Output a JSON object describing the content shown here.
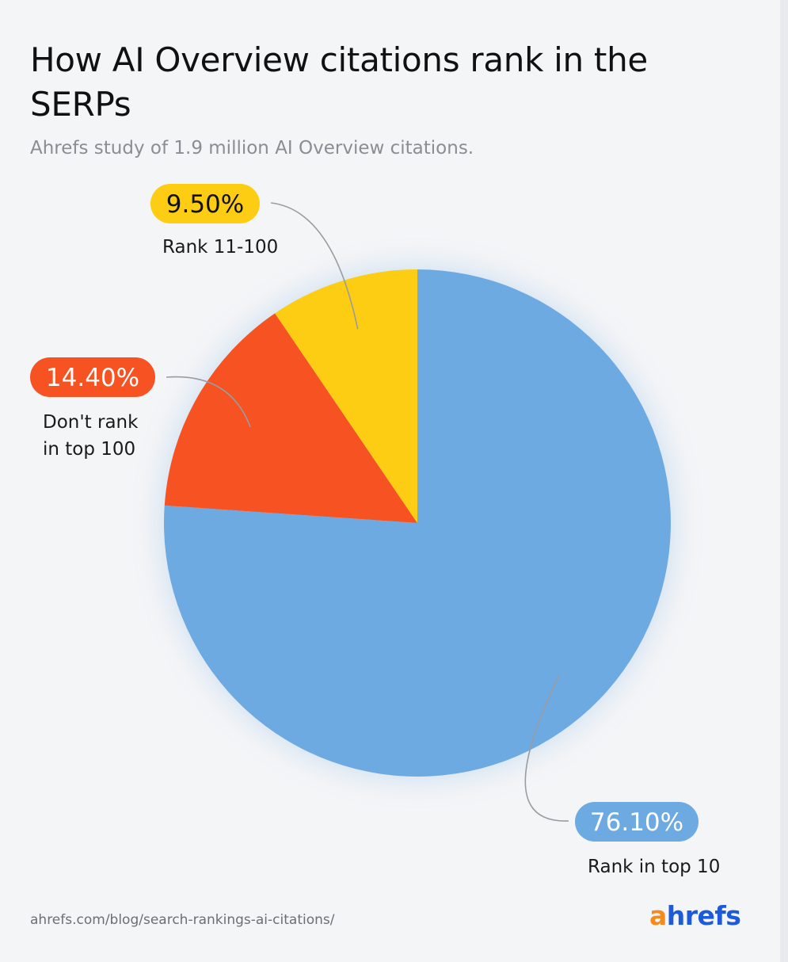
{
  "header": {
    "title": "How AI Overview citations rank in the SERPs",
    "subtitle": "Ahrefs study of 1.9 million AI Overview citations."
  },
  "chart_data": {
    "type": "pie",
    "title": "How AI Overview citations rank in the SERPs",
    "subtitle": "Ahrefs study of 1.9 million AI Overview citations.",
    "slices": [
      {
        "label": "Rank in top 10",
        "label_lines": [
          "Rank in top 10"
        ],
        "value": 76.1,
        "display": "76.10%",
        "color": "#6eaae2",
        "label_text_color": "#ffffff"
      },
      {
        "label": "Don't rank in top 100",
        "label_lines": [
          "Don't rank",
          "in top 100"
        ],
        "value": 14.4,
        "display": "14.40%",
        "color": "#f75222",
        "label_text_color": "#ffffff"
      },
      {
        "label": "Rank 11-100",
        "label_lines": [
          "Rank 11-100"
        ],
        "value": 9.5,
        "display": "9.50%",
        "color": "#fccd12",
        "label_text_color": "#111111"
      }
    ],
    "start_angle_deg": 0,
    "direction": "clockwise"
  },
  "footer": {
    "source": "ahrefs.com/blog/search-rankings-ai-citations/",
    "logo_first": "a",
    "logo_rest": "hrefs",
    "logo_colors": {
      "first": "#f58a1f",
      "rest": "#1e5bd8"
    }
  }
}
